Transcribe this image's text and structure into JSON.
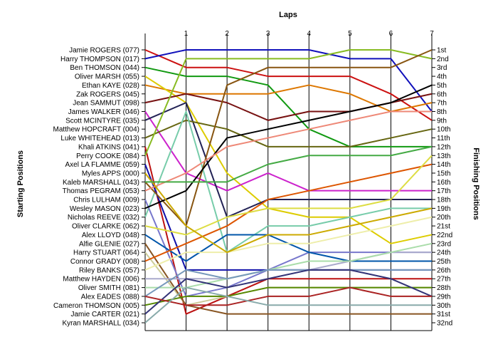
{
  "chart_data": {
    "type": "line",
    "title": "",
    "xlabel": "Laps",
    "ylabel_left": "Starting Positions",
    "ylabel_right": "Finishing Positions",
    "x": [
      0,
      1,
      2,
      3,
      4,
      5,
      6,
      7
    ],
    "x_ticks": [
      "1",
      "2",
      "3",
      "4",
      "5",
      "6",
      "7"
    ],
    "xlim": [
      0,
      7
    ],
    "ylim": [
      1,
      32
    ],
    "y_inverted": true,
    "grid": "vertical",
    "starting_positions": [
      "Jamie ROGERS (077)",
      "Harry THOMPSON (017)",
      "Ben THOMSON (044)",
      "Oliver MARSH (055)",
      "Ethan KAYE (028)",
      "Zak ROGERS (045)",
      "Jean SAMMUT (098)",
      "James WALKER (046)",
      "Scott MCINTYRE (035)",
      "Matthew HOPCRAFT (004)",
      "Luke WHITEHEAD (013)",
      "Khali ATKINS (041)",
      "Perry COOKE (084)",
      "Axel LA FLAMME (059)",
      "Myles APPS (000)",
      "Kaleb MARSHALL (043)",
      "Thomas PEGRAM (053)",
      "Chris LULHAM (009)",
      "Wesley MASON (023)",
      "Nicholas REEVE (032)",
      "Oliver CLARKE (062)",
      "Alex LLOYD (048)",
      "Alfie GLENIE (027)",
      "Harry STUART (064)",
      "Connor GRADY (008)",
      "Riley BANKS (057)",
      "Matthew HAYDEN (006)",
      "Oliver SMITH (081)",
      "Alex EADES (088)",
      "Cameron THOMSON (005)",
      "Jamie CARTER (021)",
      "Kyran MARSHALL (034)"
    ],
    "finishing_positions": [
      "1st",
      "2nd",
      "3rd",
      "4th",
      "5th",
      "6th",
      "7th",
      "8th",
      "9th",
      "10th",
      "11th",
      "12th",
      "13th",
      "14th",
      "15th",
      "16th",
      "17th",
      "18th",
      "19th",
      "20th",
      "21st",
      "22nd",
      "23rd",
      "24th",
      "25th",
      "26th",
      "27th",
      "28th",
      "29th",
      "30th",
      "31st",
      "32nd"
    ],
    "series": [
      {
        "color": "#cc1111",
        "values": [
          1,
          3,
          3,
          4,
          4,
          4,
          6,
          9
        ]
      },
      {
        "color": "#1111bb",
        "values": [
          2,
          1,
          1,
          1,
          1,
          2,
          2,
          8
        ]
      },
      {
        "color": "#119911",
        "values": [
          3,
          4,
          4,
          5,
          10,
          12,
          12,
          12
        ]
      },
      {
        "color": "#dd7700",
        "values": [
          5,
          6,
          6,
          6,
          5,
          6,
          8,
          7
        ]
      },
      {
        "color": "#ddcc00",
        "values": [
          4,
          7,
          15,
          19,
          20,
          20,
          23,
          22
        ]
      },
      {
        "color": "#771111",
        "values": [
          7,
          6,
          7,
          9,
          8,
          8,
          7,
          6
        ]
      },
      {
        "color": "#cc22cc",
        "values": [
          8,
          15,
          17,
          15,
          17,
          17,
          17,
          17
        ]
      },
      {
        "color": "#222255",
        "values": [
          9,
          7,
          20,
          18,
          18,
          18,
          18,
          18
        ]
      },
      {
        "color": "#bb1111",
        "values": [
          12,
          31,
          29,
          27,
          27,
          27,
          27,
          27
        ]
      },
      {
        "color": "#666611",
        "values": [
          11,
          9,
          10,
          12,
          12,
          12,
          11,
          10
        ]
      },
      {
        "color": "#77ccaa",
        "values": [
          20,
          8,
          24,
          21,
          21,
          20,
          19,
          19
        ]
      },
      {
        "color": "#7777cc",
        "values": [
          18,
          29,
          28,
          26,
          24,
          24,
          24,
          24
        ]
      },
      {
        "color": "#1111aa",
        "values": [
          14,
          26,
          26,
          26,
          26,
          26,
          26,
          26
        ]
      },
      {
        "color": "#88bb22",
        "values": [
          13,
          2,
          2,
          2,
          2,
          1,
          1,
          2
        ]
      },
      {
        "color": "#cccc99",
        "values": [
          24,
          30,
          29,
          28,
          28,
          28,
          28,
          28
        ]
      },
      {
        "color": "#885522",
        "values": [
          23,
          30,
          31,
          31,
          31,
          31,
          31,
          31
        ]
      },
      {
        "color": "#0055aa",
        "values": [
          22,
          25,
          22,
          22,
          24,
          25,
          25,
          25
        ]
      },
      {
        "color": "#885511",
        "values": [
          16,
          21,
          5,
          3,
          3,
          3,
          3,
          1
        ]
      },
      {
        "color": "#dd5500",
        "values": [
          25,
          23,
          21,
          18,
          17,
          16,
          15,
          14
        ]
      },
      {
        "color": "#000000",
        "values": [
          19,
          17,
          11,
          10,
          9,
          8,
          7,
          5
        ]
      },
      {
        "color": "#eeeeaa",
        "values": [
          26,
          24,
          24,
          23,
          23,
          22,
          21,
          20
        ]
      },
      {
        "color": "#aaaacc",
        "values": [
          27,
          27,
          27,
          26,
          26,
          25,
          24,
          24
        ]
      },
      {
        "color": "#ee8877",
        "values": [
          17,
          15,
          12,
          11,
          10,
          9,
          8,
          8
        ]
      },
      {
        "color": "#aaddaa",
        "values": [
          28,
          28,
          27,
          26,
          25,
          25,
          24,
          23
        ]
      },
      {
        "color": "#dddd44",
        "values": [
          21,
          22,
          20,
          19,
          19,
          19,
          18,
          13
        ]
      },
      {
        "color": "#7799bb",
        "values": [
          29,
          26,
          27,
          26,
          26,
          26,
          26,
          26
        ]
      },
      {
        "color": "#ccaa00",
        "values": [
          15,
          21,
          24,
          22,
          22,
          21,
          20,
          19
        ]
      },
      {
        "color": "#44aa44",
        "values": [
          16,
          16,
          16,
          14,
          13,
          13,
          13,
          12
        ]
      },
      {
        "color": "#558800",
        "values": [
          30,
          29,
          29,
          28,
          28,
          28,
          28,
          28
        ]
      },
      {
        "color": "#333377",
        "values": [
          31,
          27,
          28,
          27,
          26,
          26,
          27,
          29
        ]
      },
      {
        "color": "#aa2222",
        "values": [
          29,
          30,
          30,
          29,
          29,
          28,
          29,
          29
        ]
      },
      {
        "color": "#88aaaa",
        "values": [
          32,
          28,
          29,
          30,
          30,
          30,
          30,
          30
        ]
      }
    ]
  }
}
